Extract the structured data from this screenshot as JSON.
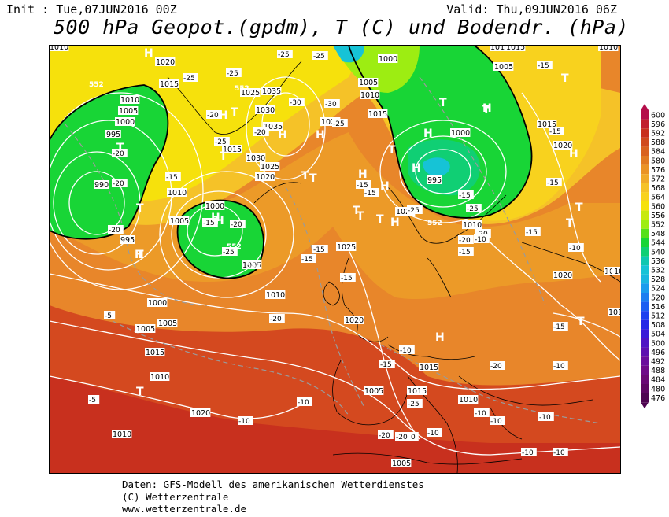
{
  "header": {
    "init": "Init : Tue,07JUN2016 00Z",
    "valid": "Valid: Thu,09JUN2016 06Z",
    "title": "500 hPa Geopot.(gpdm), T (C) und Bodendr. (hPa)"
  },
  "footer": {
    "line1": "Daten: GFS-Modell des amerikanischen Wetterdienstes",
    "line2": "(C) Wetterzentrale",
    "line3": "www.wetterzentrale.de"
  },
  "legend": {
    "values": [
      "600",
      "596",
      "592",
      "588",
      "584",
      "580",
      "576",
      "572",
      "568",
      "564",
      "560",
      "556",
      "552",
      "548",
      "544",
      "540",
      "536",
      "532",
      "528",
      "524",
      "520",
      "516",
      "512",
      "508",
      "504",
      "500",
      "496",
      "492",
      "488",
      "484",
      "480",
      "476"
    ],
    "colors": [
      "#b40e4a",
      "#c11e2c",
      "#c8301e",
      "#d04a1e",
      "#d9621f",
      "#e17a22",
      "#ea9326",
      "#f0aa2a",
      "#f5c228",
      "#f8d21e",
      "#f6e10c",
      "#c8e90e",
      "#9ded12",
      "#55e01a",
      "#18d536",
      "#10cf74",
      "#0fc7b1",
      "#16c3d6",
      "#19b7e0",
      "#1a9ced",
      "#1c7ef0",
      "#1d5ff1",
      "#1e41ef",
      "#2628e6",
      "#3b1bd8",
      "#4f14c4",
      "#5e10b0",
      "#6b0d9c",
      "#6f0a88",
      "#6a0874",
      "#5e0662",
      "#4e0450"
    ]
  },
  "map": {
    "pressure_labels": [
      "1010",
      "1020",
      "1015",
      "1010",
      "1005",
      "1000",
      "995",
      "990",
      "1005",
      "995",
      "1000",
      "1010",
      "1005",
      "1025",
      "1035",
      "1030",
      "1035",
      "1015",
      "1030",
      "1025",
      "1020",
      "1020",
      "1000",
      "1005",
      "1010",
      "1015",
      "1015",
      "1000",
      "995",
      "1010",
      "1020",
      "1025",
      "1010",
      "1005",
      "1000",
      "1005",
      "1015",
      "1010",
      "1020",
      "1015",
      "1005",
      "1015",
      "1020",
      "1020",
      "1010",
      "1015",
      "1020",
      "1010",
      "1015",
      "1005",
      "1010",
      "1005",
      "1015",
      "1010"
    ],
    "temp_labels": [
      "-25",
      "-25",
      "-25",
      "-25",
      "-30",
      "-25",
      "-30",
      "-20",
      "-20",
      "-25",
      "-20",
      "-20",
      "-20",
      "-15",
      "-15",
      "-20",
      "-25",
      "-25",
      "-25",
      "-25",
      "-20",
      "-15",
      "-15",
      "-15",
      "-15",
      "-15",
      "-10",
      "-20",
      "-15",
      "-20",
      "-15",
      "-15",
      "-15",
      "-20",
      "-15",
      "-10",
      "-5",
      "-5",
      "-10",
      "-10",
      "-10",
      "-10",
      "-10",
      "-10",
      "-15",
      "-10",
      "-10",
      "-10",
      "-10",
      "-20",
      "-20",
      "-15",
      "-15",
      "-10"
    ],
    "gpdm_labels": [
      "552",
      "552",
      "552",
      "552",
      "552"
    ],
    "systems": [
      "H",
      "T",
      "H",
      "H",
      "T",
      "T",
      "H",
      "T",
      "T",
      "T",
      "T",
      "H",
      "H",
      "T",
      "H",
      "T",
      "T",
      "H",
      "T",
      "T",
      "H",
      "H",
      "T",
      "H",
      "H",
      "T",
      "H",
      "T",
      "T",
      "H",
      "T",
      "H",
      "H",
      "T"
    ]
  }
}
